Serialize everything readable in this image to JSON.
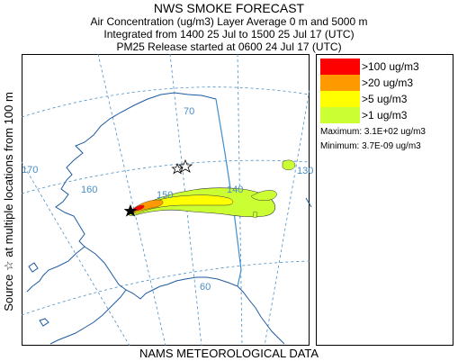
{
  "header": {
    "title": "NWS SMOKE FORECAST",
    "line2": "Air Concentration (ug/m3) Layer Average    0 m and  5000 m",
    "line3": "Integrated from 1400 25 Jul to 1500 25 Jul 17 (UTC)",
    "line4": "PM25 Release started at 0600 24 Jul 17 (UTC)"
  },
  "y_label": "Source ☆   at multiple locations   from   100 m",
  "footer": "NAMS METEOROLOGICAL DATA",
  "map_labels": {
    "lat70": "70",
    "lat60": "60",
    "lon170": "170",
    "lon160": "160",
    "lon150": "150",
    "lon140": "140",
    "lon130": "130"
  },
  "legend": [
    {
      "label": ">100 ug/m3",
      "color": "#ff0000"
    },
    {
      "label": ">20 ug/m3",
      "color": "#ff9900"
    },
    {
      "label": ">5 ug/m3",
      "color": "#ffff00"
    },
    {
      "label": ">1 ug/m3",
      "color": "#ccff33"
    }
  ],
  "stats": {
    "maximum": "Maximum: 3.1E+02 ug/m3",
    "minimum": "Minimum: 3.7E-09 ug/m3"
  },
  "colors": {
    "coast": "#1e5aa0",
    "grid": "#4a8ec4",
    "border": "#3f8fd0"
  }
}
